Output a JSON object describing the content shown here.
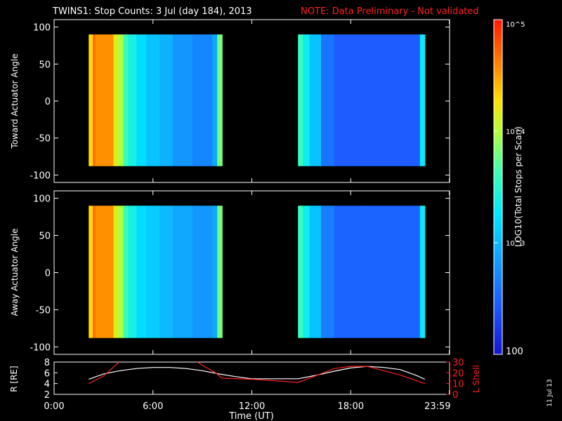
{
  "header": {
    "title": "TWINS1: Stop Counts:  3 Jul (day 184), 2013",
    "note": "NOTE: Data Preliminary - Not validated"
  },
  "colors": {
    "background": "#000000",
    "axes": "#ffffff",
    "note": "#ff2020",
    "r_line": "#ffffff",
    "lshell_line": "#ff2020"
  },
  "colorbar": {
    "label": "LOG10(Total Stops per Scan)",
    "scale": "log",
    "range": [
      100,
      100000
    ],
    "ticks": [
      {
        "value": 100000,
        "label": "10^5"
      },
      {
        "value": 10000,
        "label": "10^4"
      },
      {
        "value": 1000,
        "label": "10^3"
      },
      {
        "value": 100,
        "label": "100"
      }
    ]
  },
  "date_stamp": "11 Jul 13",
  "chart_data": [
    {
      "type": "heatmap",
      "ylabel": "Toward Actuator Angle",
      "ylim": [
        -110,
        110
      ],
      "yticks": [
        "100",
        "50",
        "0",
        "-50",
        "-100"
      ],
      "xlim": [
        0,
        24
      ],
      "y_extent": [
        -88,
        90
      ],
      "blocks": [
        {
          "x_start": 2.1,
          "x_end": 10.2,
          "bands": [
            [
              2.1,
              2.35,
              4.3
            ],
            [
              2.35,
              2.5,
              4.7
            ],
            [
              2.5,
              3.6,
              4.55
            ],
            [
              3.6,
              3.8,
              4.2
            ],
            [
              3.8,
              4.2,
              4.0
            ],
            [
              4.2,
              4.5,
              3.6
            ],
            [
              4.5,
              5.0,
              3.4
            ],
            [
              5.0,
              5.6,
              3.2
            ],
            [
              5.6,
              6.4,
              3.05
            ],
            [
              6.4,
              7.2,
              2.95
            ],
            [
              7.2,
              8.4,
              2.8
            ],
            [
              8.4,
              9.6,
              2.7
            ],
            [
              9.6,
              9.9,
              2.9
            ],
            [
              9.9,
              10.2,
              3.8
            ]
          ]
        },
        {
          "x_start": 14.8,
          "x_end": 22.5,
          "bands": [
            [
              14.8,
              15.1,
              3.6
            ],
            [
              15.1,
              15.5,
              3.35
            ],
            [
              15.5,
              16.2,
              3.05
            ],
            [
              16.2,
              17.0,
              2.6
            ],
            [
              17.0,
              19.0,
              2.45
            ],
            [
              19.0,
              22.2,
              2.45
            ],
            [
              22.2,
              22.5,
              3.3
            ]
          ]
        }
      ]
    },
    {
      "type": "heatmap",
      "ylabel": "Away Actuator Angle",
      "ylim": [
        -110,
        110
      ],
      "yticks": [
        "100",
        "50",
        "0",
        "-50",
        "-100"
      ],
      "xlim": [
        0,
        24
      ],
      "y_extent": [
        -88,
        90
      ],
      "blocks": [
        {
          "x_start": 2.1,
          "x_end": 10.2,
          "bands": [
            [
              2.1,
              2.35,
              4.3
            ],
            [
              2.35,
              2.5,
              4.7
            ],
            [
              2.5,
              3.6,
              4.55
            ],
            [
              3.6,
              3.8,
              4.2
            ],
            [
              3.8,
              4.2,
              4.0
            ],
            [
              4.2,
              4.5,
              3.6
            ],
            [
              4.5,
              5.0,
              3.4
            ],
            [
              5.0,
              5.6,
              3.2
            ],
            [
              5.6,
              6.4,
              3.1
            ],
            [
              6.4,
              7.2,
              3.0
            ],
            [
              7.2,
              8.4,
              2.9
            ],
            [
              8.4,
              9.6,
              2.8
            ],
            [
              9.6,
              9.9,
              2.9
            ],
            [
              9.9,
              10.2,
              3.8
            ]
          ]
        },
        {
          "x_start": 14.8,
          "x_end": 22.5,
          "bands": [
            [
              14.8,
              15.1,
              3.6
            ],
            [
              15.1,
              15.5,
              3.35
            ],
            [
              15.5,
              16.2,
              3.05
            ],
            [
              16.2,
              17.0,
              2.65
            ],
            [
              17.0,
              19.0,
              2.5
            ],
            [
              19.0,
              22.2,
              2.5
            ],
            [
              22.2,
              22.5,
              3.3
            ]
          ]
        }
      ]
    },
    {
      "type": "line",
      "ylabel": "R [RE]",
      "y2label": "L Shell",
      "xlabel": "Time (UT)",
      "xlim": [
        0,
        24
      ],
      "ylim": [
        2,
        8
      ],
      "y2lim": [
        0,
        30
      ],
      "yticks": [
        "2",
        "4",
        "6",
        "8"
      ],
      "y2ticks": [
        "0",
        "10",
        "20",
        "30"
      ],
      "xticks": [
        {
          "value": 0,
          "label": "0:00"
        },
        {
          "value": 6,
          "label": "6:00"
        },
        {
          "value": 12,
          "label": "12:00"
        },
        {
          "value": 18,
          "label": "18:00"
        },
        {
          "value": 23.98,
          "label": "23:59"
        }
      ],
      "series": [
        {
          "axis": "left",
          "x": [
            2.1,
            3,
            4,
            5,
            6,
            7,
            8,
            9,
            10,
            11,
            12,
            13,
            14,
            14.8,
            16,
            17,
            18,
            19,
            20,
            21,
            22,
            22.5
          ],
          "y": [
            4.8,
            5.8,
            6.4,
            6.8,
            7.0,
            7.0,
            6.8,
            6.4,
            5.8,
            5.3,
            4.9,
            4.9,
            4.9,
            4.9,
            5.6,
            6.3,
            6.9,
            7.2,
            7.0,
            6.6,
            5.5,
            4.8
          ]
        },
        {
          "axis": "right",
          "x": [
            2.1,
            3,
            3.8,
            4.1,
            4.3,
            8.2,
            8.5,
            9.0,
            9.8,
            10.2,
            12.0,
            14.0,
            14.8,
            16,
            17,
            18,
            19,
            20,
            21,
            22.5
          ],
          "y": [
            10,
            17,
            28,
            32,
            40,
            40,
            32,
            27,
            20,
            15,
            14,
            12,
            11,
            18,
            24,
            26,
            26,
            22,
            18,
            10
          ]
        }
      ]
    }
  ]
}
